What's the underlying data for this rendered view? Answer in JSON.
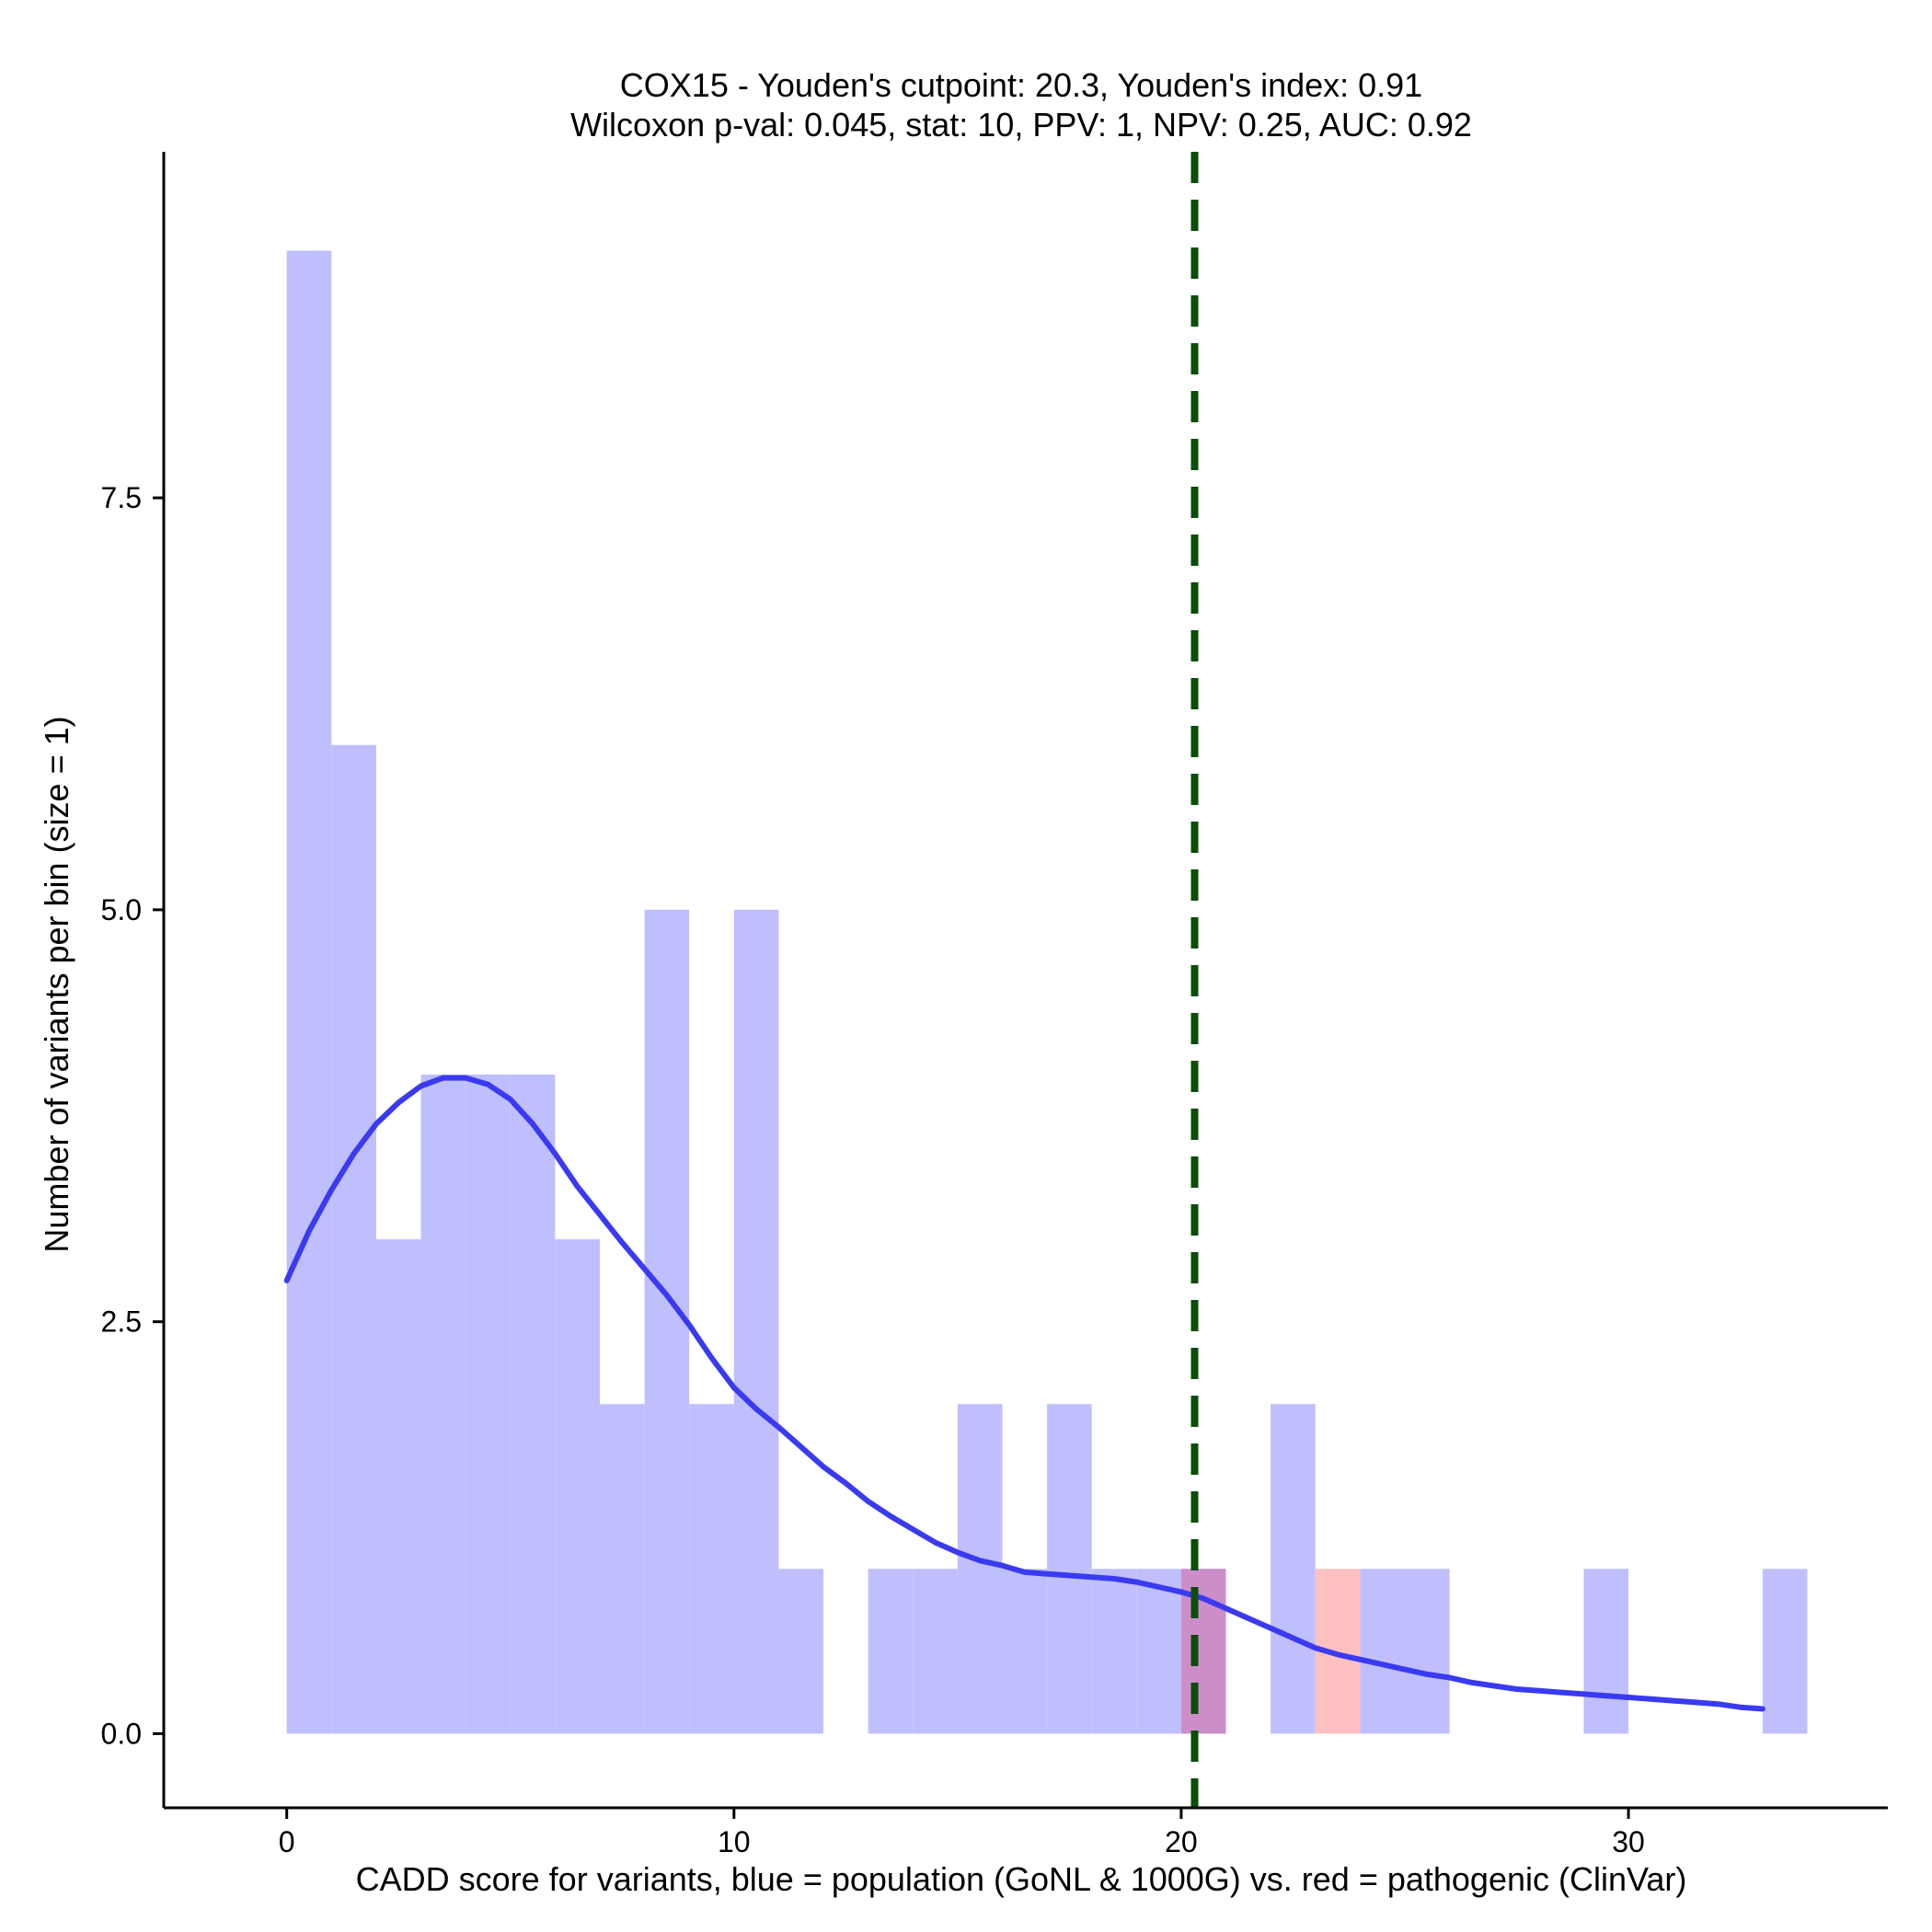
{
  "chart_data": {
    "type": "histogram",
    "title_line1": "COX15 - Youden's cutpoint: 20.3, Youden's index: 0.91",
    "title_line2": "Wilcoxon p-val: 0.045, stat: 10, PPV: 1, NPV: 0.25, AUC: 0.92",
    "xlabel": "CADD score for variants, blue = population (GoNL & 1000G) vs. red = pathogenic (ClinVar)",
    "ylabel": "Number of variants per bin (size = 1)",
    "xlim": [
      -2.75,
      35.8
    ],
    "ylim": [
      -0.45,
      9.6
    ],
    "x_ticks": [
      0,
      10,
      20,
      30
    ],
    "x_tick_labels": [
      "0",
      "10",
      "20",
      "30"
    ],
    "y_ticks": [
      0,
      2.5,
      5,
      7.5
    ],
    "y_tick_labels": [
      "0.0",
      "2.5",
      "5.0",
      "7.5"
    ],
    "bin_width": 1,
    "cutpoint": 20.3,
    "colors": {
      "population": "#bfbffe",
      "pathogenic": "#fec0c0",
      "overlap": "#cc8ec9",
      "density": "#3a3af2",
      "cutpoint": "#0b4d0b"
    },
    "series": [
      {
        "name": "population",
        "bins": [
          {
            "start": 0,
            "count": 9
          },
          {
            "start": 1,
            "count": 6
          },
          {
            "start": 2,
            "count": 3
          },
          {
            "start": 3,
            "count": 4
          },
          {
            "start": 4,
            "count": 4
          },
          {
            "start": 5,
            "count": 4
          },
          {
            "start": 6,
            "count": 3
          },
          {
            "start": 7,
            "count": 2
          },
          {
            "start": 8,
            "count": 5
          },
          {
            "start": 9,
            "count": 2
          },
          {
            "start": 10,
            "count": 5
          },
          {
            "start": 11,
            "count": 1
          },
          {
            "start": 13,
            "count": 1
          },
          {
            "start": 14,
            "count": 1
          },
          {
            "start": 15,
            "count": 2
          },
          {
            "start": 16,
            "count": 1
          },
          {
            "start": 17,
            "count": 2
          },
          {
            "start": 18,
            "count": 1
          },
          {
            "start": 19,
            "count": 1
          },
          {
            "start": 20,
            "count": 1
          },
          {
            "start": 22,
            "count": 2
          },
          {
            "start": 24,
            "count": 1
          },
          {
            "start": 25,
            "count": 1
          },
          {
            "start": 29,
            "count": 1
          },
          {
            "start": 33,
            "count": 1
          }
        ]
      },
      {
        "name": "pathogenic",
        "bins": [
          {
            "start": 20,
            "count": 1
          },
          {
            "start": 23,
            "count": 1
          }
        ]
      }
    ],
    "density_curve": {
      "name": "population density",
      "x": [
        0,
        0.5,
        1,
        1.5,
        2,
        2.5,
        3,
        3.5,
        4,
        4.5,
        5,
        5.5,
        6,
        6.5,
        7,
        7.5,
        8,
        8.5,
        9,
        9.5,
        10,
        10.5,
        11,
        11.5,
        12,
        12.5,
        13,
        13.5,
        14,
        14.5,
        15,
        15.5,
        16,
        16.5,
        17,
        17.5,
        18,
        18.5,
        19,
        19.5,
        20,
        20.5,
        21,
        21.5,
        22,
        22.5,
        23,
        23.5,
        24,
        24.5,
        25,
        25.5,
        26,
        26.5,
        27,
        27.5,
        28,
        28.5,
        29,
        29.5,
        30,
        30.5,
        31,
        31.5,
        32,
        32.5,
        33
      ],
      "y": [
        2.75,
        3.05,
        3.3,
        3.52,
        3.7,
        3.83,
        3.93,
        3.98,
        3.98,
        3.94,
        3.85,
        3.7,
        3.52,
        3.32,
        3.15,
        2.98,
        2.82,
        2.66,
        2.48,
        2.28,
        2.1,
        1.97,
        1.86,
        1.74,
        1.62,
        1.52,
        1.41,
        1.32,
        1.24,
        1.16,
        1.1,
        1.05,
        1.02,
        0.98,
        0.97,
        0.96,
        0.95,
        0.94,
        0.92,
        0.89,
        0.86,
        0.82,
        0.76,
        0.7,
        0.64,
        0.58,
        0.52,
        0.48,
        0.45,
        0.42,
        0.39,
        0.36,
        0.34,
        0.31,
        0.29,
        0.27,
        0.26,
        0.25,
        0.24,
        0.23,
        0.22,
        0.21,
        0.2,
        0.19,
        0.18,
        0.16,
        0.15
      ]
    }
  }
}
